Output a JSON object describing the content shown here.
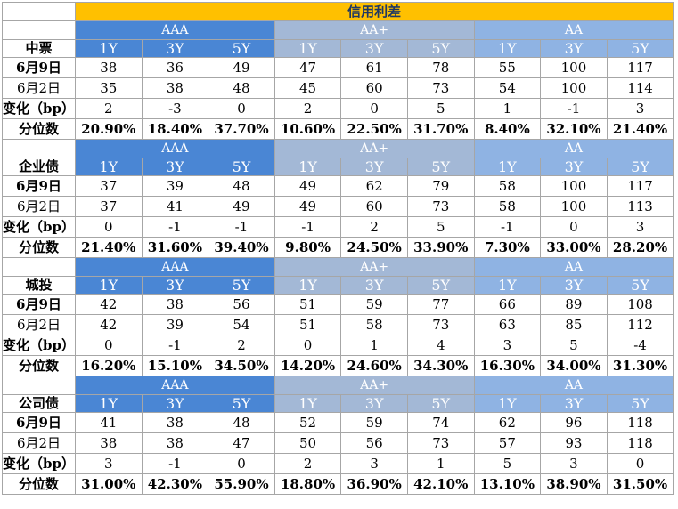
{
  "title": "信用利差",
  "group_labels": [
    "AAA",
    "AA+",
    "AA"
  ],
  "tenors": [
    "1Y",
    "3Y",
    "5Y",
    "1Y",
    "3Y",
    "5Y",
    "1Y",
    "3Y",
    "5Y"
  ],
  "row_labels": {
    "current": "6月9日",
    "previous": "6月2日",
    "change": "变化（bp）",
    "percentile": "分位数"
  },
  "sections": [
    {
      "name": "中票",
      "current": [
        "38",
        "36",
        "49",
        "47",
        "61",
        "78",
        "55",
        "100",
        "117"
      ],
      "previous": [
        "35",
        "38",
        "48",
        "45",
        "60",
        "73",
        "54",
        "100",
        "114"
      ],
      "change": [
        "2",
        "-3",
        "0",
        "2",
        "0",
        "5",
        "1",
        "-1",
        "3"
      ],
      "percentile": [
        "20.90%",
        "18.40%",
        "37.70%",
        "10.60%",
        "22.50%",
        "31.70%",
        "8.40%",
        "32.10%",
        "21.40%"
      ]
    },
    {
      "name": "企业债",
      "current": [
        "37",
        "39",
        "48",
        "49",
        "62",
        "79",
        "58",
        "100",
        "117"
      ],
      "previous": [
        "37",
        "41",
        "49",
        "49",
        "60",
        "73",
        "58",
        "100",
        "113"
      ],
      "change": [
        "0",
        "-1",
        "-1",
        "-1",
        "2",
        "5",
        "-1",
        "0",
        "3"
      ],
      "percentile": [
        "21.40%",
        "31.60%",
        "39.40%",
        "9.80%",
        "24.50%",
        "33.90%",
        "7.30%",
        "33.00%",
        "28.20%"
      ]
    },
    {
      "name": "城投",
      "current": [
        "42",
        "38",
        "56",
        "51",
        "59",
        "77",
        "66",
        "89",
        "108"
      ],
      "previous": [
        "42",
        "39",
        "54",
        "51",
        "58",
        "73",
        "63",
        "85",
        "112"
      ],
      "change": [
        "0",
        "-1",
        "2",
        "0",
        "1",
        "4",
        "3",
        "5",
        "-4"
      ],
      "percentile": [
        "16.20%",
        "15.10%",
        "34.50%",
        "14.20%",
        "24.60%",
        "34.30%",
        "16.30%",
        "34.00%",
        "31.30%"
      ]
    },
    {
      "name": "公司债",
      "current": [
        "41",
        "38",
        "48",
        "52",
        "59",
        "74",
        "62",
        "96",
        "118"
      ],
      "previous": [
        "38",
        "38",
        "47",
        "50",
        "56",
        "73",
        "57",
        "93",
        "118"
      ],
      "change": [
        "3",
        "-1",
        "0",
        "2",
        "3",
        "1",
        "5",
        "3",
        "0"
      ],
      "percentile": [
        "31.00%",
        "42.30%",
        "55.90%",
        "18.80%",
        "36.90%",
        "42.10%",
        "13.10%",
        "38.90%",
        "31.50%"
      ]
    }
  ],
  "colors": {
    "title_bg": "#ffc000",
    "aaa_header": "#4a86d4",
    "aa_plus_header": "#a3b8d6",
    "aa_header": "#8fb3e3"
  }
}
